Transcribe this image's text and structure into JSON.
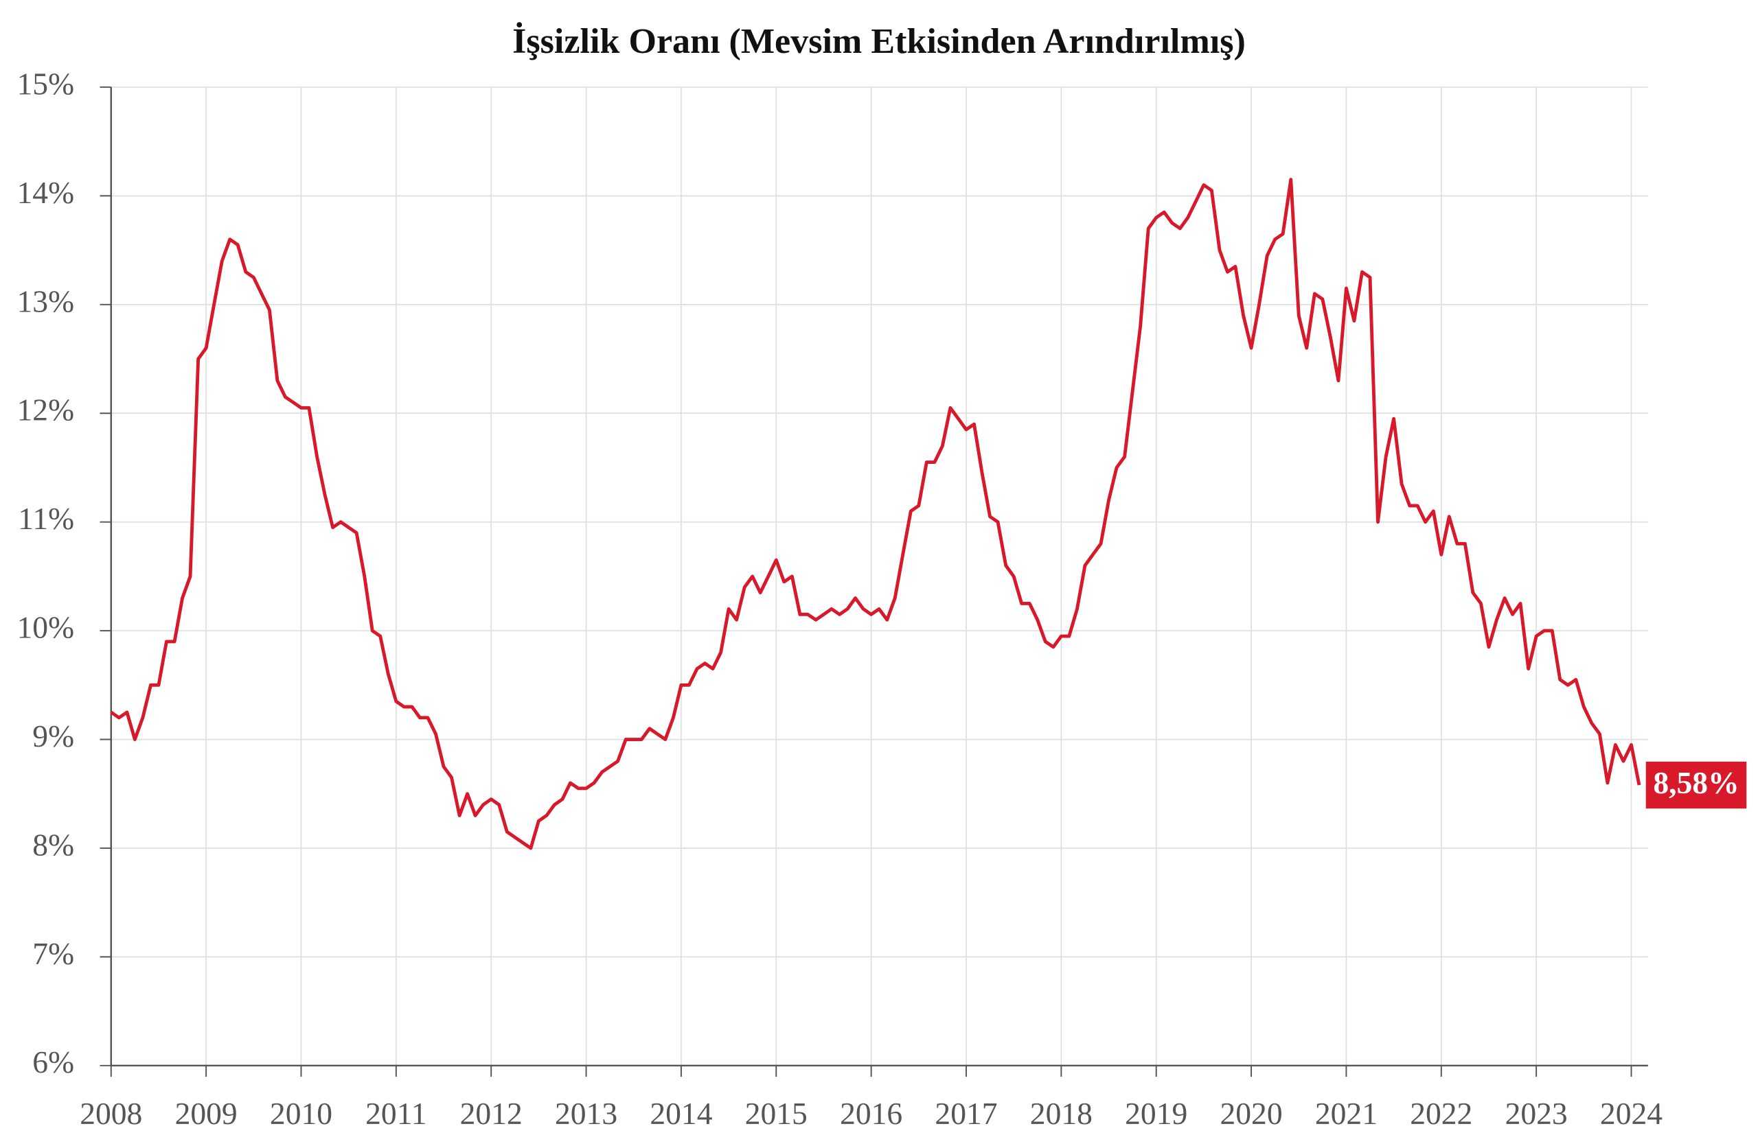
{
  "chart_data": {
    "type": "line",
    "title": "İşsizlik Oranı (Mevsim Etkisinden Arındırılmış)",
    "end_label": "8,58%",
    "grid": true,
    "xlim": [
      2008,
      2024.176
    ],
    "xticks": [
      2008,
      2009,
      2010,
      2011,
      2012,
      2013,
      2014,
      2015,
      2016,
      2017,
      2018,
      2019,
      2020,
      2021,
      2022,
      2023,
      2024
    ],
    "ylim": [
      6,
      15
    ],
    "yticks": [
      {
        "value": 6,
        "label": "6%"
      },
      {
        "value": 7,
        "label": "7%"
      },
      {
        "value": 8,
        "label": "8%"
      },
      {
        "value": 9,
        "label": "9%"
      },
      {
        "value": 10,
        "label": "10%"
      },
      {
        "value": 11,
        "label": "11%"
      },
      {
        "value": 12,
        "label": "12%"
      },
      {
        "value": 13,
        "label": "13%"
      },
      {
        "value": 14,
        "label": "14%"
      },
      {
        "value": 15,
        "label": "15%"
      }
    ],
    "x": [
      2008,
      2008.083,
      2008.167,
      2008.25,
      2008.333,
      2008.417,
      2008.5,
      2008.583,
      2008.667,
      2008.75,
      2008.833,
      2008.917,
      2009,
      2009.083,
      2009.167,
      2009.25,
      2009.333,
      2009.417,
      2009.5,
      2009.583,
      2009.667,
      2009.75,
      2009.833,
      2009.917,
      2010,
      2010.083,
      2010.167,
      2010.25,
      2010.333,
      2010.417,
      2010.5,
      2010.583,
      2010.667,
      2010.75,
      2010.833,
      2010.917,
      2011,
      2011.083,
      2011.167,
      2011.25,
      2011.333,
      2011.417,
      2011.5,
      2011.583,
      2011.667,
      2011.75,
      2011.833,
      2011.917,
      2012,
      2012.083,
      2012.167,
      2012.25,
      2012.333,
      2012.417,
      2012.5,
      2012.583,
      2012.667,
      2012.75,
      2012.833,
      2012.917,
      2013,
      2013.083,
      2013.167,
      2013.25,
      2013.333,
      2013.417,
      2013.5,
      2013.583,
      2013.667,
      2013.75,
      2013.833,
      2013.917,
      2014,
      2014.083,
      2014.167,
      2014.25,
      2014.333,
      2014.417,
      2014.5,
      2014.583,
      2014.667,
      2014.75,
      2014.833,
      2014.917,
      2015,
      2015.083,
      2015.167,
      2015.25,
      2015.333,
      2015.417,
      2015.5,
      2015.583,
      2015.667,
      2015.75,
      2015.833,
      2015.917,
      2016,
      2016.083,
      2016.167,
      2016.25,
      2016.333,
      2016.417,
      2016.5,
      2016.583,
      2016.667,
      2016.75,
      2016.833,
      2016.917,
      2017,
      2017.083,
      2017.167,
      2017.25,
      2017.333,
      2017.417,
      2017.5,
      2017.583,
      2017.667,
      2017.75,
      2017.833,
      2017.917,
      2018,
      2018.083,
      2018.167,
      2018.25,
      2018.333,
      2018.417,
      2018.5,
      2018.583,
      2018.667,
      2018.75,
      2018.833,
      2018.917,
      2019,
      2019.083,
      2019.167,
      2019.25,
      2019.333,
      2019.417,
      2019.5,
      2019.583,
      2019.667,
      2019.75,
      2019.833,
      2019.917,
      2020,
      2020.083,
      2020.167,
      2020.25,
      2020.333,
      2020.417,
      2020.5,
      2020.583,
      2020.667,
      2020.75,
      2020.833,
      2020.917,
      2021,
      2021.083,
      2021.167,
      2021.25,
      2021.333,
      2021.417,
      2021.5,
      2021.583,
      2021.667,
      2021.75,
      2021.833,
      2021.917,
      2022,
      2022.083,
      2022.167,
      2022.25,
      2022.333,
      2022.417,
      2022.5,
      2022.583,
      2022.667,
      2022.75,
      2022.833,
      2022.917,
      2023,
      2023.083,
      2023.167,
      2023.25,
      2023.333,
      2023.417,
      2023.5,
      2023.583,
      2023.667,
      2023.75,
      2023.833,
      2023.917,
      2024,
      2024.083
    ],
    "series": [
      {
        "color": "#d7192a",
        "values": [
          9.25,
          9.2,
          9.25,
          9.0,
          9.2,
          9.5,
          9.5,
          9.9,
          9.9,
          10.3,
          10.5,
          12.5,
          12.6,
          13.0,
          13.4,
          13.6,
          13.55,
          13.3,
          13.25,
          13.1,
          12.95,
          12.3,
          12.15,
          12.1,
          12.05,
          12.05,
          11.6,
          11.25,
          10.95,
          11.0,
          10.95,
          10.9,
          10.5,
          10.0,
          9.95,
          9.6,
          9.35,
          9.3,
          9.3,
          9.2,
          9.2,
          9.05,
          8.75,
          8.65,
          8.3,
          8.5,
          8.3,
          8.4,
          8.45,
          8.4,
          8.15,
          8.1,
          8.05,
          8.0,
          8.25,
          8.3,
          8.4,
          8.45,
          8.6,
          8.55,
          8.55,
          8.6,
          8.7,
          8.75,
          8.8,
          9.0,
          9.0,
          9.0,
          9.1,
          9.05,
          9.0,
          9.2,
          9.5,
          9.5,
          9.65,
          9.7,
          9.65,
          9.8,
          10.2,
          10.1,
          10.4,
          10.5,
          10.35,
          10.5,
          10.65,
          10.45,
          10.5,
          10.15,
          10.15,
          10.1,
          10.15,
          10.2,
          10.15,
          10.2,
          10.3,
          10.2,
          10.15,
          10.2,
          10.1,
          10.3,
          10.7,
          11.1,
          11.15,
          11.55,
          11.55,
          11.7,
          12.05,
          11.95,
          11.85,
          11.9,
          11.45,
          11.05,
          11.0,
          10.6,
          10.5,
          10.25,
          10.25,
          10.1,
          9.9,
          9.85,
          9.95,
          9.95,
          10.2,
          10.6,
          10.7,
          10.8,
          11.2,
          11.5,
          11.6,
          12.2,
          12.8,
          13.7,
          13.8,
          13.85,
          13.75,
          13.7,
          13.8,
          13.95,
          14.1,
          14.05,
          13.5,
          13.3,
          13.35,
          12.9,
          12.6,
          13.0,
          13.45,
          13.6,
          13.65,
          14.15,
          12.9,
          12.6,
          13.1,
          13.05,
          12.7,
          12.3,
          13.15,
          12.85,
          13.3,
          13.25,
          11.0,
          11.6,
          11.95,
          11.35,
          11.15,
          11.15,
          11.0,
          11.1,
          10.7,
          11.05,
          10.8,
          10.8,
          10.35,
          10.25,
          9.85,
          10.1,
          10.3,
          10.15,
          10.25,
          9.65,
          9.95,
          10.0,
          10.0,
          9.55,
          9.5,
          9.55,
          9.3,
          9.15,
          9.05,
          8.6,
          8.95,
          8.8,
          8.95,
          8.58
        ]
      }
    ]
  }
}
